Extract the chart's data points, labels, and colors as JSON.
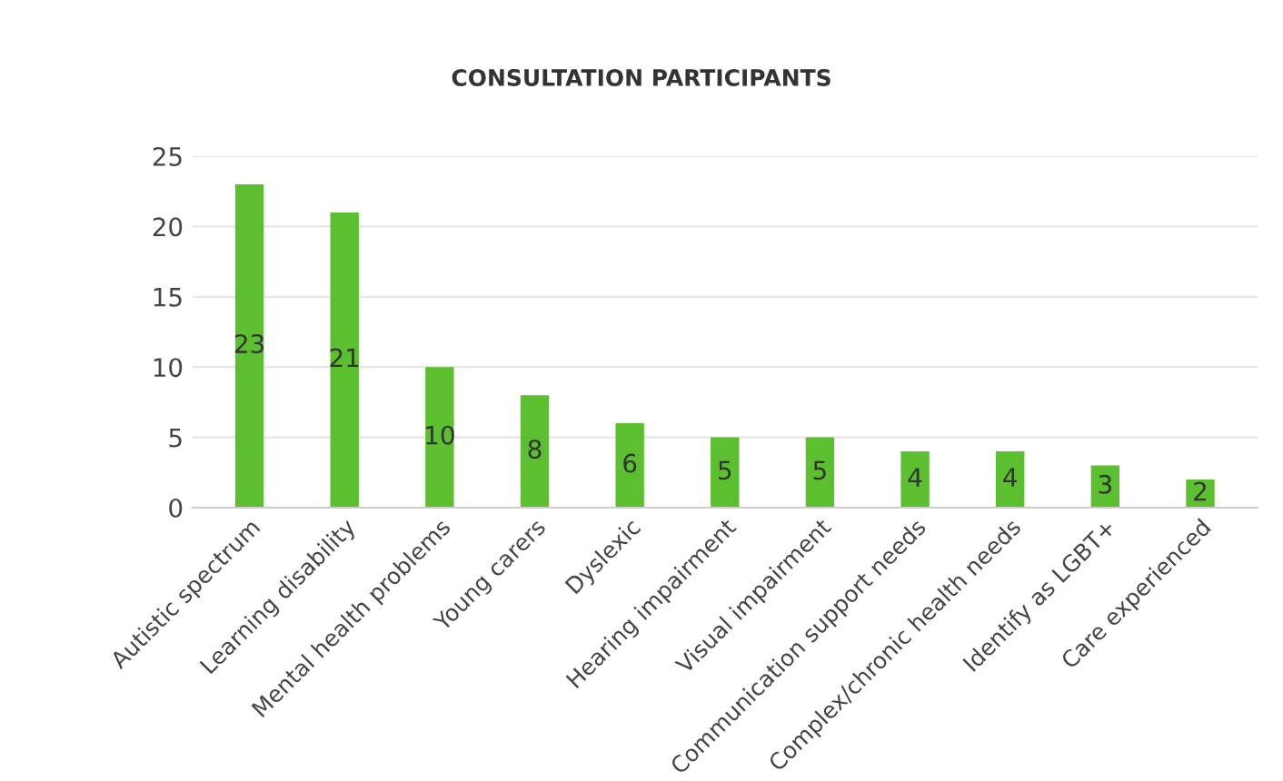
{
  "chart_data": {
    "type": "bar",
    "title": "CONSULTATION PARTICIPANTS",
    "categories": [
      "Autistic spectrum",
      "Learning disability",
      "Mental health problems",
      "Young carers",
      "Dyslexic",
      "Hearing impairment",
      "Visual impairment",
      "Communication support needs",
      "Complex/chronic health needs",
      "Identify as LGBT+",
      "Care experienced"
    ],
    "values": [
      23,
      21,
      10,
      8,
      6,
      5,
      5,
      4,
      4,
      3,
      2
    ],
    "color": "#5bbf2f",
    "ylim": [
      0,
      25
    ],
    "yticks": [
      0,
      5,
      10,
      15,
      20,
      25
    ],
    "grid": "y",
    "data_labels": true
  }
}
